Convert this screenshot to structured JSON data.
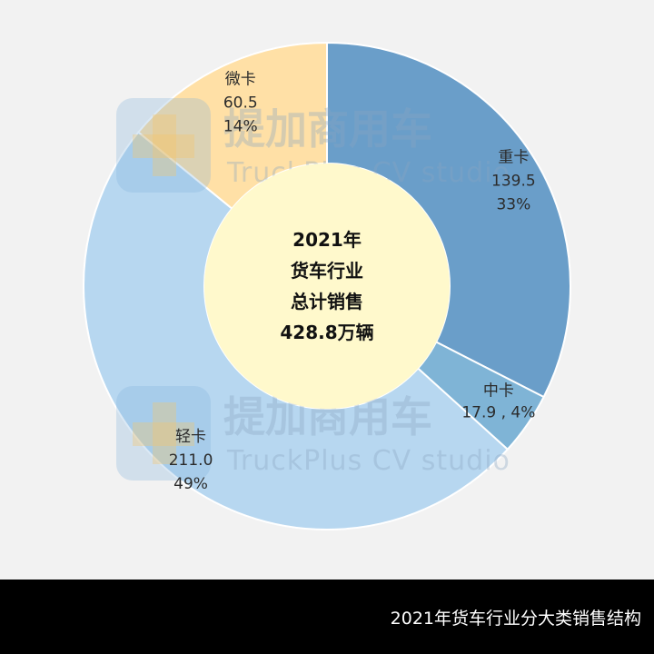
{
  "chart_data": {
    "type": "pie",
    "variant": "donut",
    "unit": "万辆",
    "center_lines": [
      "2021年",
      "货车行业",
      "总计销售",
      "428.8万辆"
    ],
    "slices": [
      {
        "name": "重卡",
        "value": 139.5,
        "value_label": "139.5",
        "percent_label": "33%",
        "color": "#6a9ec9"
      },
      {
        "name": "中卡",
        "value": 17.9,
        "value_label": "17.9",
        "percent_label": "4%",
        "color": "#7fb4d6"
      },
      {
        "name": "轻卡",
        "value": 211.0,
        "value_label": "211.0",
        "percent_label": "49%",
        "color": "#b7d7f0"
      },
      {
        "name": "微卡",
        "value": 60.5,
        "value_label": "60.5",
        "percent_label": "14%",
        "color": "#ffe0a6"
      }
    ],
    "center_color": "#fff9cc"
  },
  "watermark": {
    "cn": "提加商用车",
    "en": "TruckPlus CV studio"
  },
  "footer": {
    "caption": "2021年货车行业分大类销售结构"
  }
}
